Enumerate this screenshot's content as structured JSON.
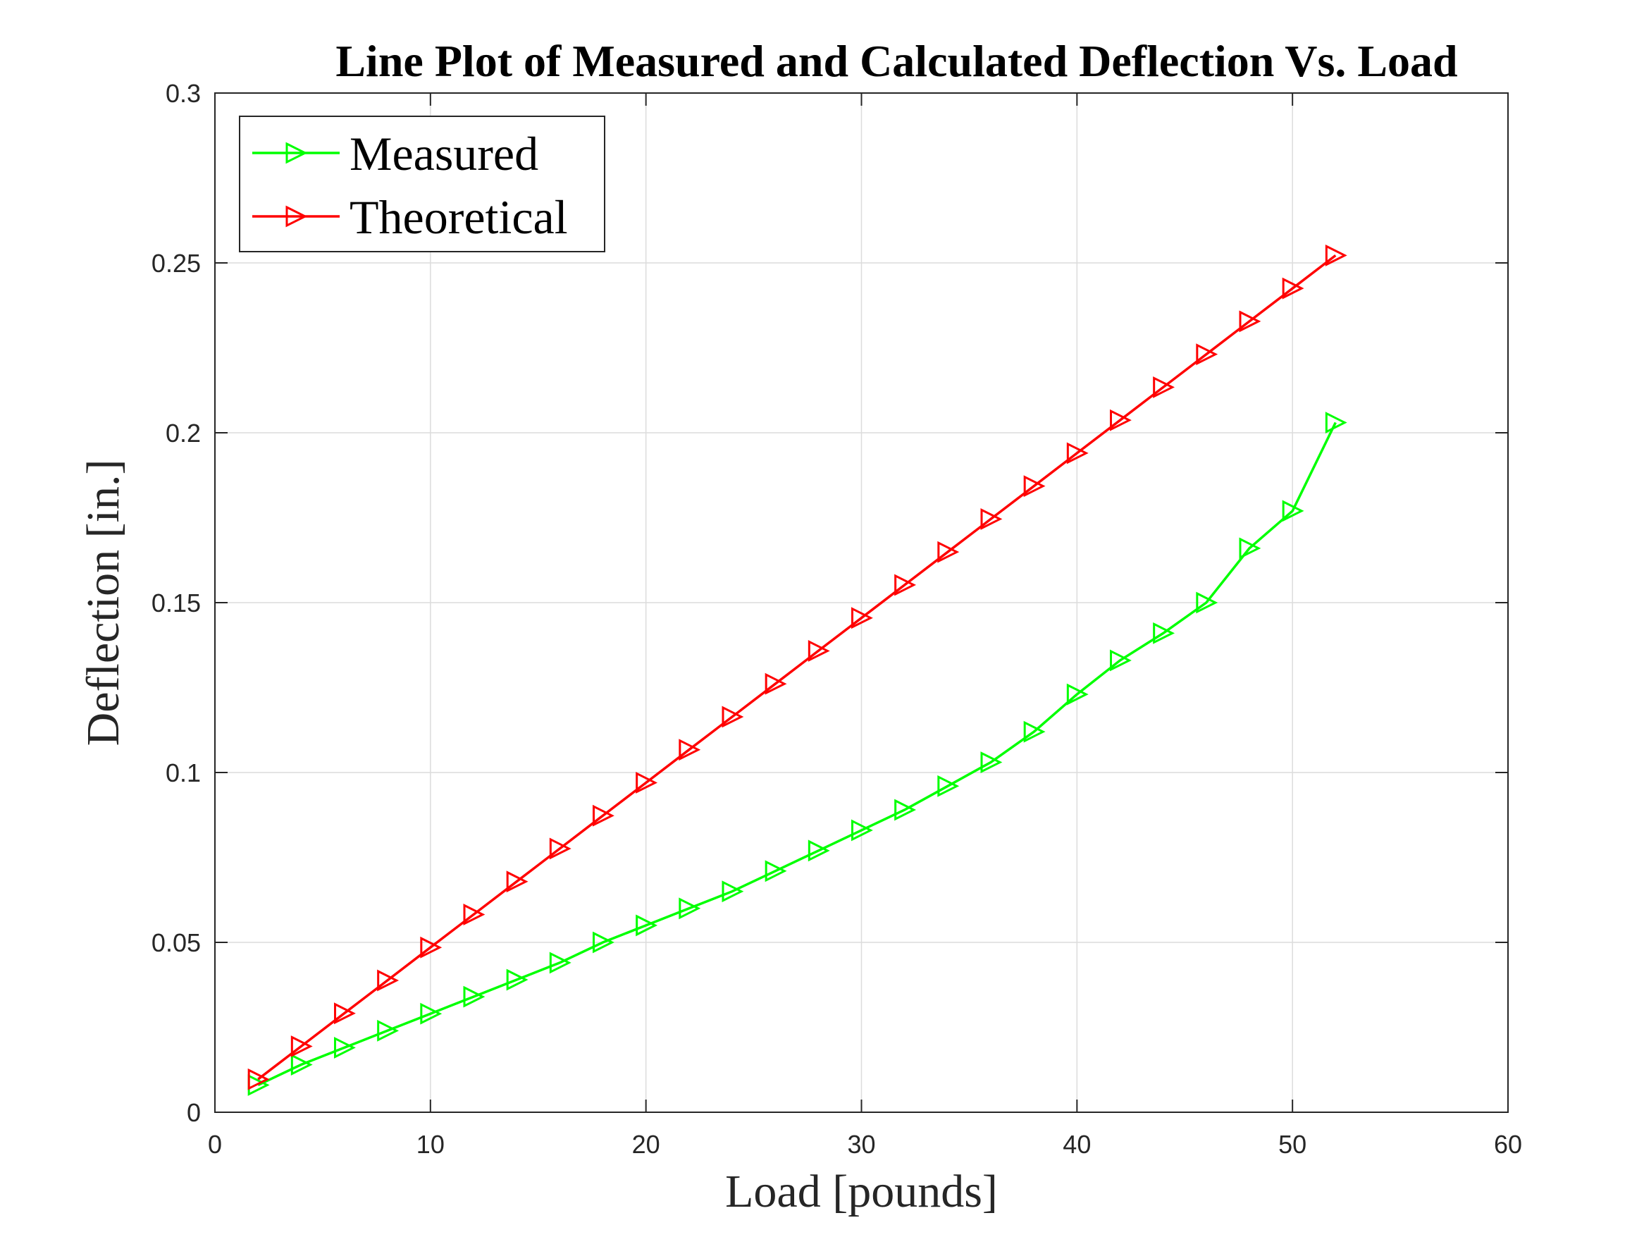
{
  "chart_data": {
    "type": "line",
    "title": "Line Plot of Measured and Calculated Deflection Vs. Load",
    "xlabel": "Load [pounds]",
    "ylabel": "Deflection [in.]",
    "xlim": [
      0,
      60
    ],
    "ylim": [
      0,
      0.3
    ],
    "xticks": [
      0,
      10,
      20,
      30,
      40,
      50,
      60
    ],
    "xtick_labels": [
      "0",
      "10",
      "20",
      "30",
      "40",
      "50",
      "60"
    ],
    "yticks": [
      0,
      0.05,
      0.1,
      0.15,
      0.2,
      0.25,
      0.3
    ],
    "ytick_labels": [
      "0",
      "0.05",
      "0.1",
      "0.15",
      "0.2",
      "0.25",
      "0.3"
    ],
    "grid": true,
    "legend_position": "top-left",
    "marker": "triangle-right",
    "x": [
      2,
      4,
      6,
      8,
      10,
      12,
      14,
      16,
      18,
      20,
      22,
      24,
      26,
      28,
      30,
      32,
      34,
      36,
      38,
      40,
      42,
      44,
      46,
      48,
      50,
      52
    ],
    "series": [
      {
        "name": "Measured",
        "color": "#00ff00",
        "values": [
          0.008,
          0.014,
          0.019,
          0.024,
          0.029,
          0.034,
          0.039,
          0.044,
          0.05,
          0.055,
          0.06,
          0.065,
          0.071,
          0.077,
          0.083,
          0.089,
          0.096,
          0.103,
          0.112,
          0.123,
          0.133,
          0.141,
          0.15,
          0.166,
          0.177,
          0.203
        ]
      },
      {
        "name": "Theoretical",
        "color": "#ff0000",
        "values": [
          0.0097,
          0.0194,
          0.0291,
          0.0388,
          0.0485,
          0.0582,
          0.0679,
          0.0776,
          0.0873,
          0.097,
          0.1067,
          0.1164,
          0.1261,
          0.1358,
          0.1455,
          0.1552,
          0.1649,
          0.1746,
          0.1843,
          0.194,
          0.2037,
          0.2134,
          0.2231,
          0.2328,
          0.2425,
          0.2522
        ]
      }
    ]
  }
}
